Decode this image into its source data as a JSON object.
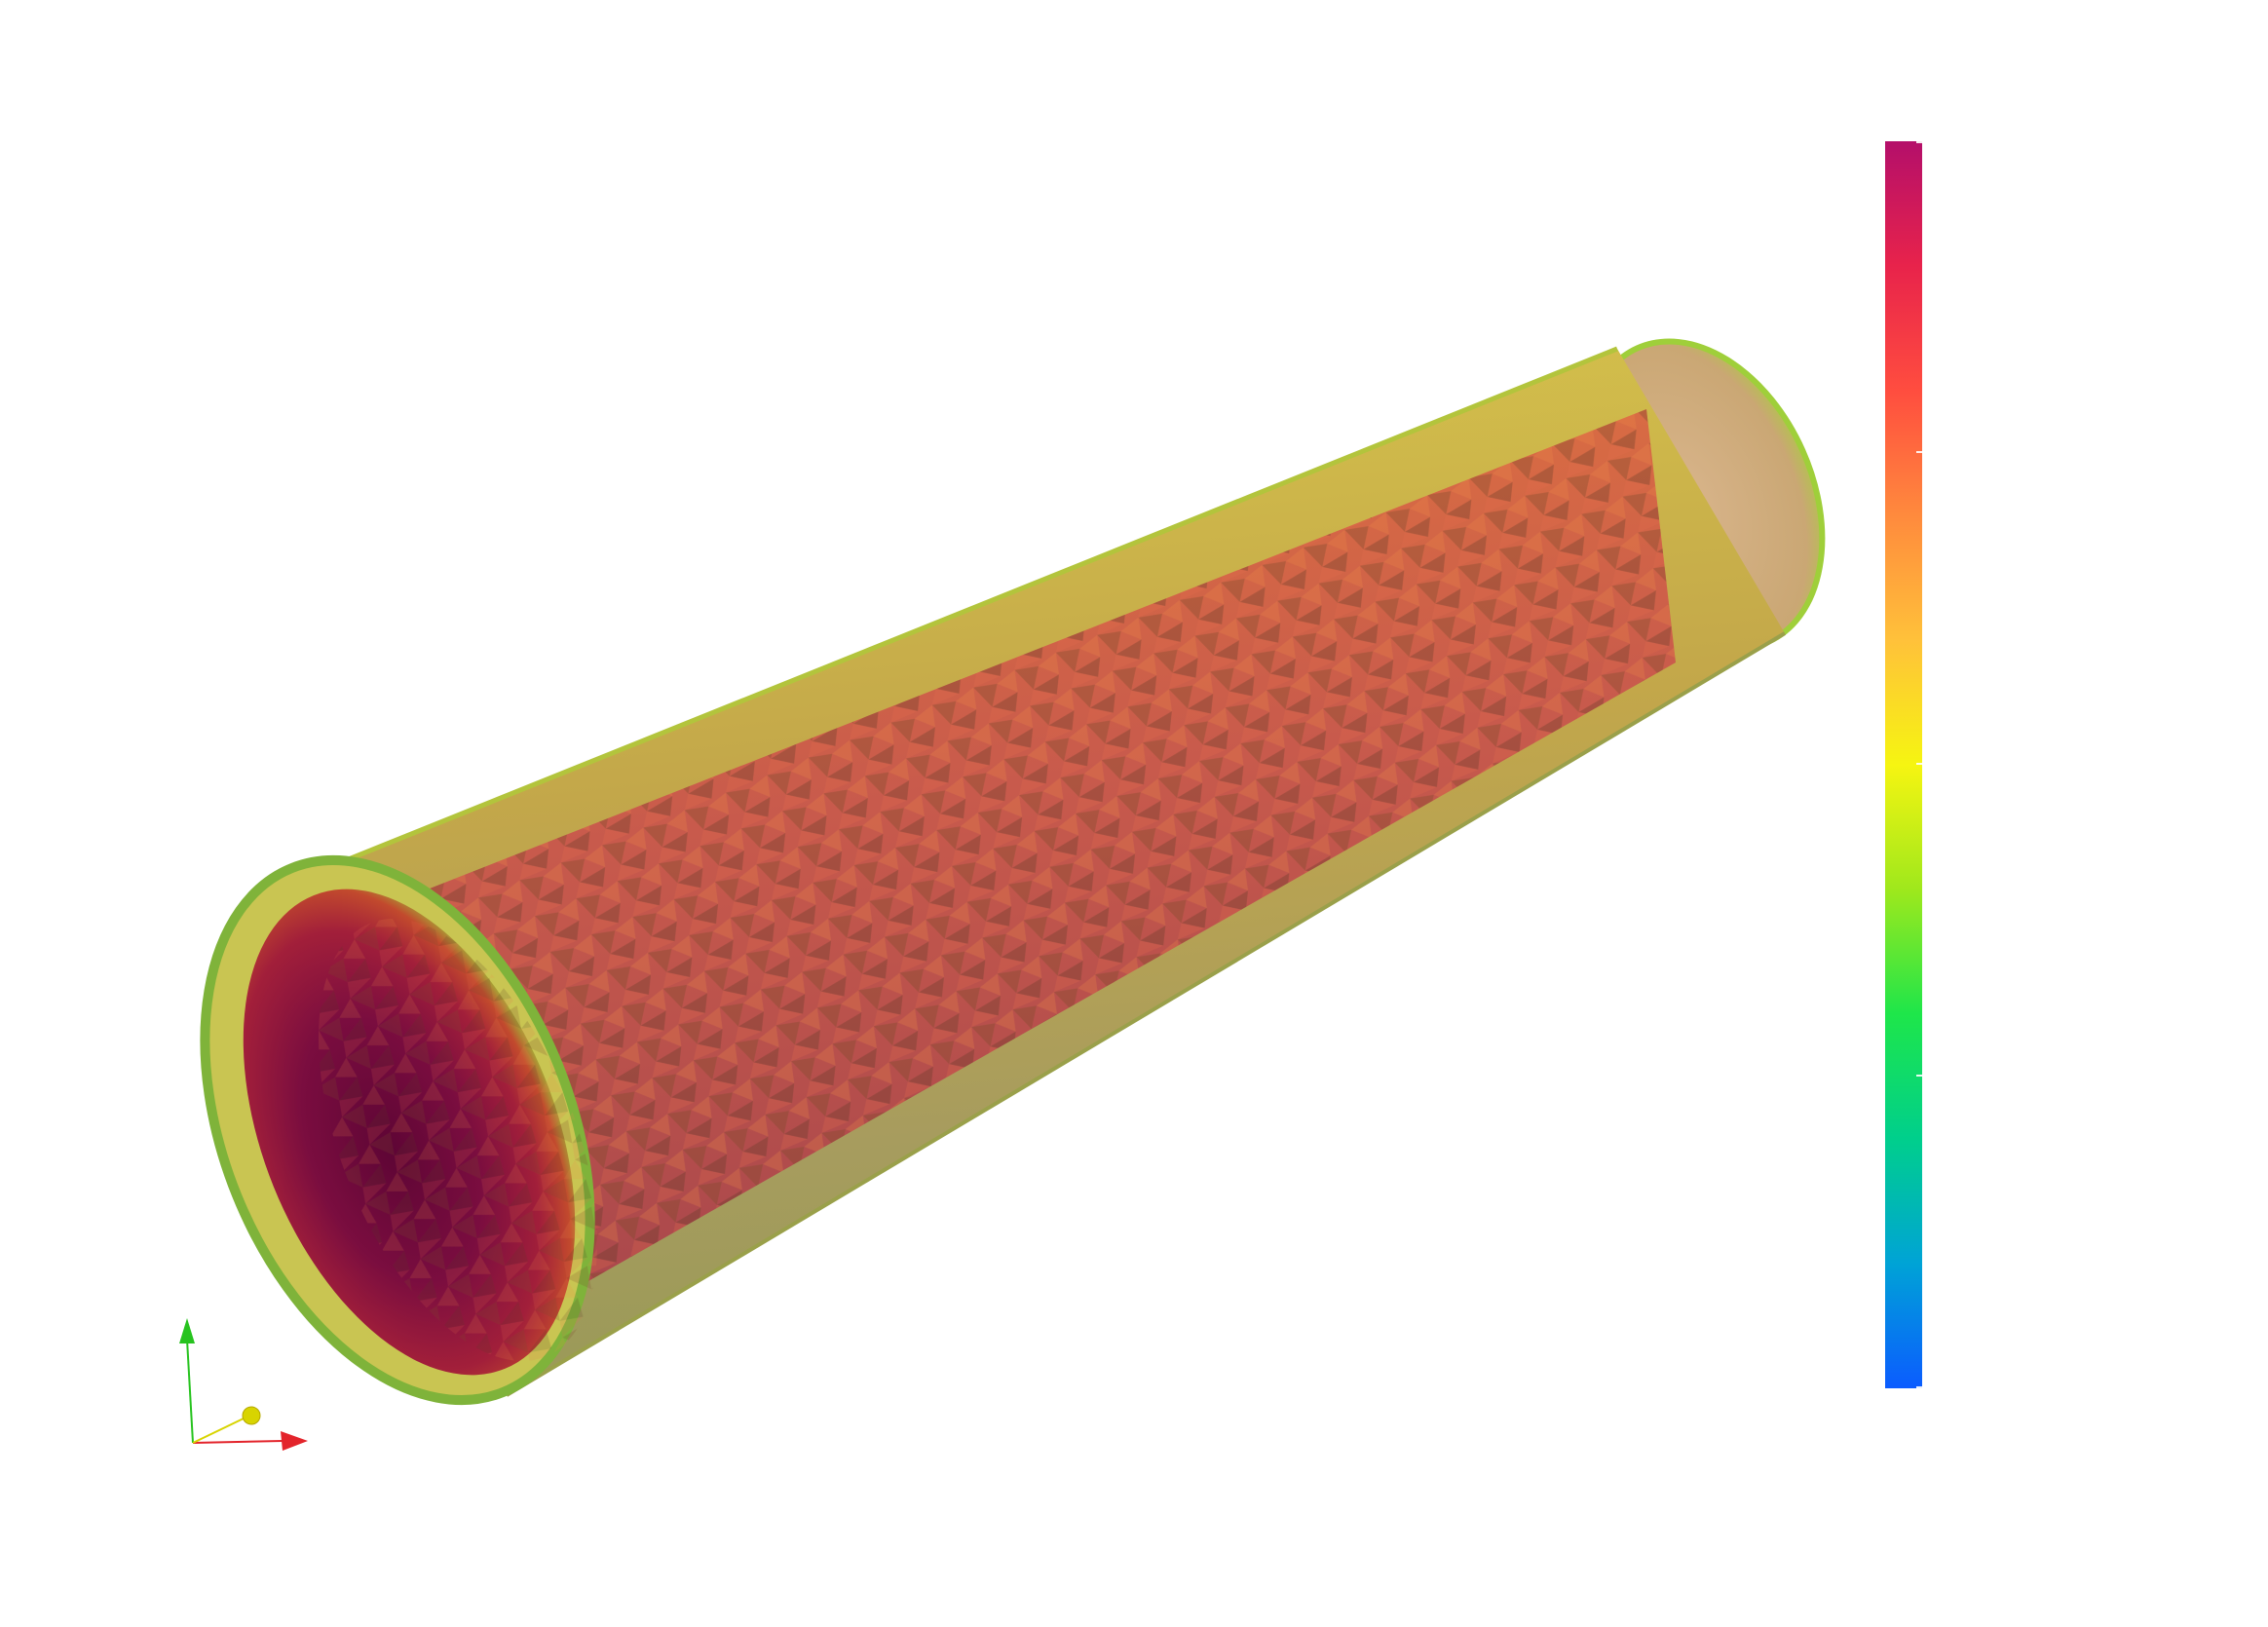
{
  "viewport": {
    "background": "#ffffff"
  },
  "surface": {
    "shape": "cylinder-tetrahedral-mesh",
    "rendering": "translucent-surface-with-cut-interior",
    "colormap": [
      "#0b5cff",
      "#00a3d6",
      "#00cf8c",
      "#1ee64a",
      "#9fe81c",
      "#f6f511",
      "#ffc13a",
      "#ff8a3d",
      "#ff4d3f",
      "#e8234b",
      "#b40f6a"
    ]
  },
  "colorbar": {
    "orientation": "vertical",
    "colormap": [
      "#0b5cff",
      "#00a3d6",
      "#00cf8c",
      "#1ee64a",
      "#9fe81c",
      "#f6f511",
      "#ffc13a",
      "#ff8a3d",
      "#ff4d3f",
      "#e8234b",
      "#b40f6a"
    ],
    "tick_count": 5
  },
  "axes_triad": {
    "x_color": "#e3242b",
    "y_color": "#27c31f",
    "z_color": "#d8d400"
  }
}
